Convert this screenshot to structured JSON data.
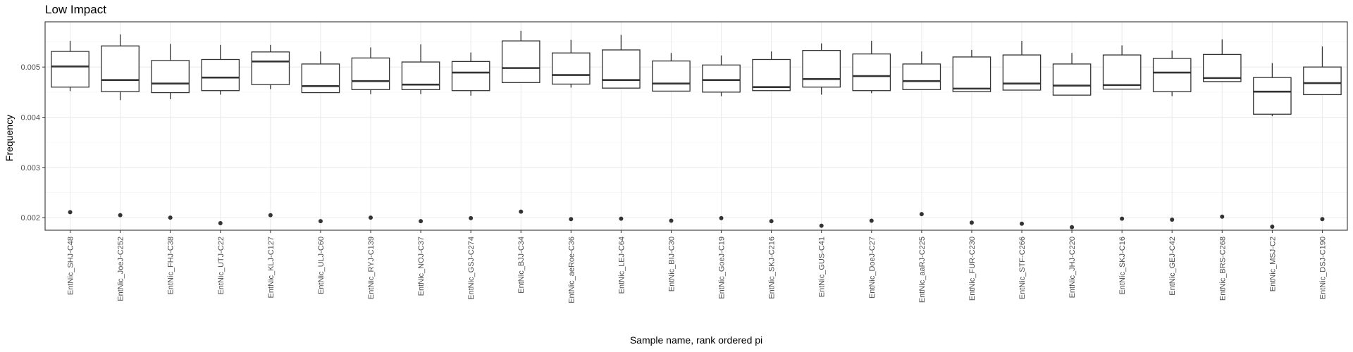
{
  "chart_data": {
    "type": "boxplot",
    "title": "Low Impact",
    "xlabel": "Sample name, rank ordered pi",
    "ylabel": "Frequency",
    "ylim": [
      0.00175,
      0.0059
    ],
    "y_ticks": [
      0.002,
      0.003,
      0.004,
      0.005
    ],
    "y_tick_labels": [
      "0.002",
      "0.003",
      "0.004",
      "0.005"
    ],
    "grid": true,
    "legend": "none",
    "categories": [
      "EntNic_SHJ-C48",
      "EntNic_JoeJ-C252",
      "EntNic_FHJ-C38",
      "EntNic_UTJ-C22",
      "EntNic_KLJ-C127",
      "EntNic_ULJ-C60",
      "EntNic_RYJ-C139",
      "EntNic_NOJ-C37",
      "EntNic_GSJ-C274",
      "EntNic_BJJ-C34",
      "EntNic_aeRoe-C36",
      "EntNic_LEJ-C64",
      "EntNic_BIJ-C30",
      "EntNic_GoeJ-C19",
      "EntNic_SKJ-C216",
      "EntNic_GUS-C41",
      "EntNic_DoeJ-C27",
      "EntNic_aaRJ-C225",
      "EntNic_FUR-C230",
      "EntNic_STF-C266",
      "EntNic_JHJ-C220",
      "EntNic_SKJ-C16",
      "EntNic_GEJ-C42",
      "EntNic_BRS-C268",
      "EntNic_MSJ-C2",
      "EntNic_DSJ-C190"
    ],
    "boxes": [
      {
        "whisker_low": 0.00452,
        "q1": 0.0046,
        "median": 0.00501,
        "q3": 0.00531,
        "whisker_high": 0.00552,
        "outlier": 0.00211
      },
      {
        "whisker_low": 0.00434,
        "q1": 0.00451,
        "median": 0.00474,
        "q3": 0.00542,
        "whisker_high": 0.00565,
        "outlier": 0.00205
      },
      {
        "whisker_low": 0.00436,
        "q1": 0.00449,
        "median": 0.00467,
        "q3": 0.00513,
        "whisker_high": 0.00546,
        "outlier": 0.002
      },
      {
        "whisker_low": 0.00445,
        "q1": 0.00453,
        "median": 0.00479,
        "q3": 0.00515,
        "whisker_high": 0.00544,
        "outlier": 0.00189
      },
      {
        "whisker_low": 0.00456,
        "q1": 0.00465,
        "median": 0.00511,
        "q3": 0.0053,
        "whisker_high": 0.00544,
        "outlier": 0.00205
      },
      {
        "whisker_low": 0.00449,
        "q1": 0.00449,
        "median": 0.00462,
        "q3": 0.00506,
        "whisker_high": 0.00531,
        "outlier": 0.00193
      },
      {
        "whisker_low": 0.00446,
        "q1": 0.00455,
        "median": 0.00472,
        "q3": 0.00518,
        "whisker_high": 0.00539,
        "outlier": 0.002
      },
      {
        "whisker_low": 0.00446,
        "q1": 0.00455,
        "median": 0.00465,
        "q3": 0.0051,
        "whisker_high": 0.00545,
        "outlier": 0.00193
      },
      {
        "whisker_low": 0.00443,
        "q1": 0.00453,
        "median": 0.00489,
        "q3": 0.00511,
        "whisker_high": 0.00529,
        "outlier": 0.00199
      },
      {
        "whisker_low": 0.00469,
        "q1": 0.00469,
        "median": 0.00498,
        "q3": 0.00552,
        "whisker_high": 0.00572,
        "outlier": 0.00212
      },
      {
        "whisker_low": 0.00459,
        "q1": 0.00466,
        "median": 0.00484,
        "q3": 0.00528,
        "whisker_high": 0.00554,
        "outlier": 0.00197
      },
      {
        "whisker_low": 0.00458,
        "q1": 0.00458,
        "median": 0.00474,
        "q3": 0.00534,
        "whisker_high": 0.00564,
        "outlier": 0.00198
      },
      {
        "whisker_low": 0.00452,
        "q1": 0.00452,
        "median": 0.00467,
        "q3": 0.00512,
        "whisker_high": 0.00528,
        "outlier": 0.00194
      },
      {
        "whisker_low": 0.00442,
        "q1": 0.0045,
        "median": 0.00474,
        "q3": 0.00504,
        "whisker_high": 0.00523,
        "outlier": 0.00199
      },
      {
        "whisker_low": 0.00453,
        "q1": 0.00453,
        "median": 0.0046,
        "q3": 0.00515,
        "whisker_high": 0.00531,
        "outlier": 0.00193
      },
      {
        "whisker_low": 0.00445,
        "q1": 0.0046,
        "median": 0.00476,
        "q3": 0.00533,
        "whisker_high": 0.00547,
        "outlier": 0.00184
      },
      {
        "whisker_low": 0.00448,
        "q1": 0.00453,
        "median": 0.00482,
        "q3": 0.00526,
        "whisker_high": 0.00552,
        "outlier": 0.00194
      },
      {
        "whisker_low": 0.00455,
        "q1": 0.00455,
        "median": 0.00472,
        "q3": 0.00506,
        "whisker_high": 0.00531,
        "outlier": 0.00207
      },
      {
        "whisker_low": 0.00451,
        "q1": 0.00451,
        "median": 0.00457,
        "q3": 0.0052,
        "whisker_high": 0.00534,
        "outlier": 0.0019
      },
      {
        "whisker_low": 0.00454,
        "q1": 0.00454,
        "median": 0.00467,
        "q3": 0.00524,
        "whisker_high": 0.00552,
        "outlier": 0.00188
      },
      {
        "whisker_low": 0.00444,
        "q1": 0.00444,
        "median": 0.00463,
        "q3": 0.00506,
        "whisker_high": 0.00528,
        "outlier": 0.00181
      },
      {
        "whisker_low": 0.00456,
        "q1": 0.00456,
        "median": 0.00464,
        "q3": 0.00524,
        "whisker_high": 0.00543,
        "outlier": 0.00198
      },
      {
        "whisker_low": 0.00442,
        "q1": 0.00451,
        "median": 0.00489,
        "q3": 0.00517,
        "whisker_high": 0.00533,
        "outlier": 0.00196
      },
      {
        "whisker_low": 0.00471,
        "q1": 0.00471,
        "median": 0.00478,
        "q3": 0.00525,
        "whisker_high": 0.00555,
        "outlier": 0.00202
      },
      {
        "whisker_low": 0.00402,
        "q1": 0.00406,
        "median": 0.00451,
        "q3": 0.00479,
        "whisker_high": 0.00508,
        "outlier": 0.00182
      },
      {
        "whisker_low": 0.00445,
        "q1": 0.00445,
        "median": 0.00468,
        "q3": 0.005,
        "whisker_high": 0.00541,
        "outlier": 0.00197
      }
    ]
  }
}
